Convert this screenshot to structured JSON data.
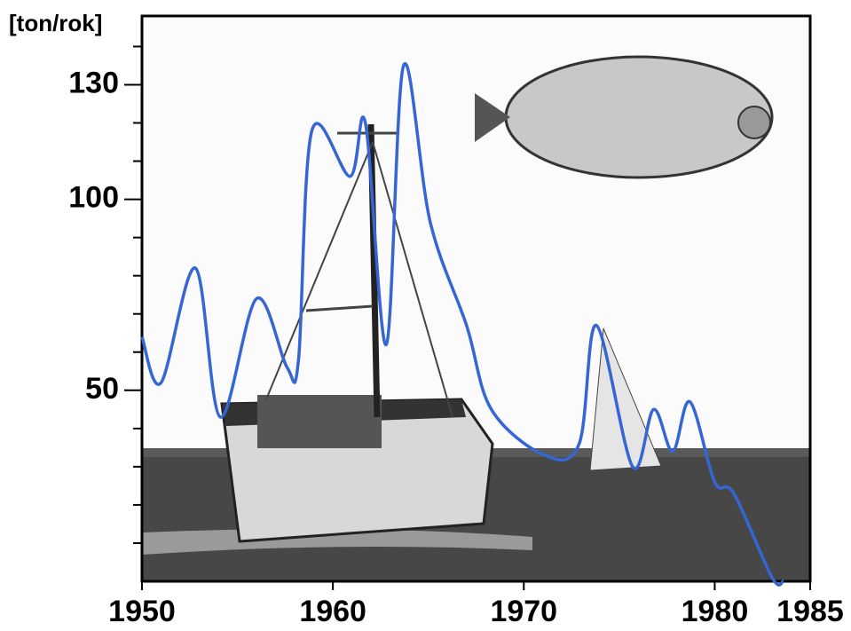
{
  "chart_data": {
    "type": "line",
    "y_label": "[ton/rok]",
    "x": [
      1950,
      1951,
      1952.8,
      1954.1,
      1956,
      1957.6,
      1958.2,
      1958.9,
      1960.9,
      1961.7,
      1962.8,
      1963.7,
      1965.1,
      1967,
      1968.3,
      1971.1,
      1972.9,
      1973.8,
      1975.7,
      1976.8,
      1977.8,
      1978.7,
      1980,
      1981,
      1983,
      1983.6
    ],
    "series": [
      {
        "color": "#3566d4",
        "values": [
          64,
          52,
          82,
          43,
          74,
          56,
          58,
          118,
          106,
          120,
          62,
          135,
          94,
          67,
          45,
          33,
          36,
          67,
          30,
          45,
          34,
          47,
          26,
          23,
          1,
          0
        ]
      }
    ],
    "xlim": [
      1950,
      1985
    ],
    "xticks": [
      1950,
      1960,
      1970,
      1980,
      1985
    ],
    "ylim": [
      0,
      148
    ],
    "yticks": [
      50,
      100,
      130
    ],
    "yminorticks": [
      10,
      20,
      30,
      40,
      60,
      70,
      80,
      90,
      110,
      120,
      140
    ]
  }
}
